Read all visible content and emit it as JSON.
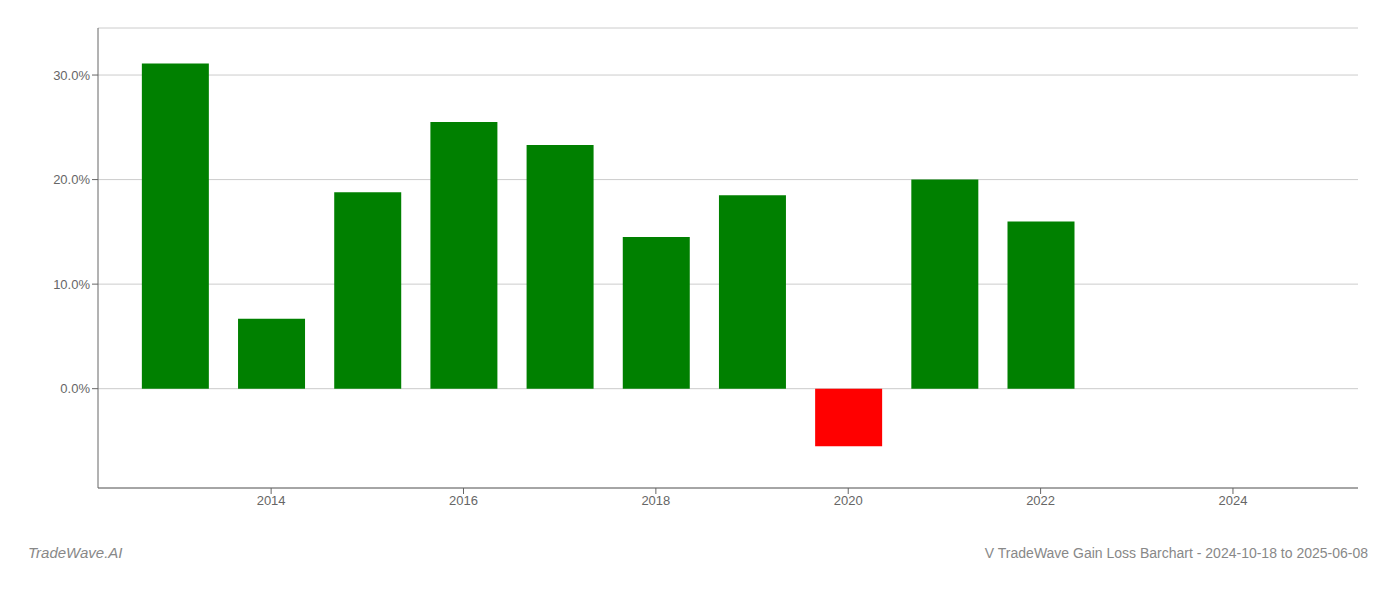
{
  "chart_data": {
    "type": "bar",
    "title": "V TradeWave Gain Loss Barchart - 2024-10-18 to 2025-06-08",
    "annotations": [
      "TradeWave.AI"
    ],
    "x": [
      2013,
      2014,
      2015,
      2016,
      2017,
      2018,
      2019,
      2020,
      2021,
      2022,
      2023
    ],
    "values": [
      0.311,
      0.067,
      0.188,
      0.255,
      0.233,
      0.145,
      0.185,
      -0.055,
      0.2,
      0.16,
      0.0
    ],
    "colors": [
      "#008000",
      "#008000",
      "#008000",
      "#008000",
      "#008000",
      "#008000",
      "#008000",
      "#ff0000",
      "#008000",
      "#008000",
      "#008000"
    ],
    "xlim": [
      2012.2,
      2025.3
    ],
    "xticks": [
      2014,
      2016,
      2018,
      2020,
      2022,
      2024
    ],
    "ylim": [
      -0.095,
      0.345
    ],
    "yticks": [
      {
        "value": 0.0,
        "label": "0.0%"
      },
      {
        "value": 0.1,
        "label": "10.0%"
      },
      {
        "value": 0.2,
        "label": "20.0%"
      },
      {
        "value": 0.3,
        "label": "30.0%"
      }
    ],
    "grid": true
  }
}
